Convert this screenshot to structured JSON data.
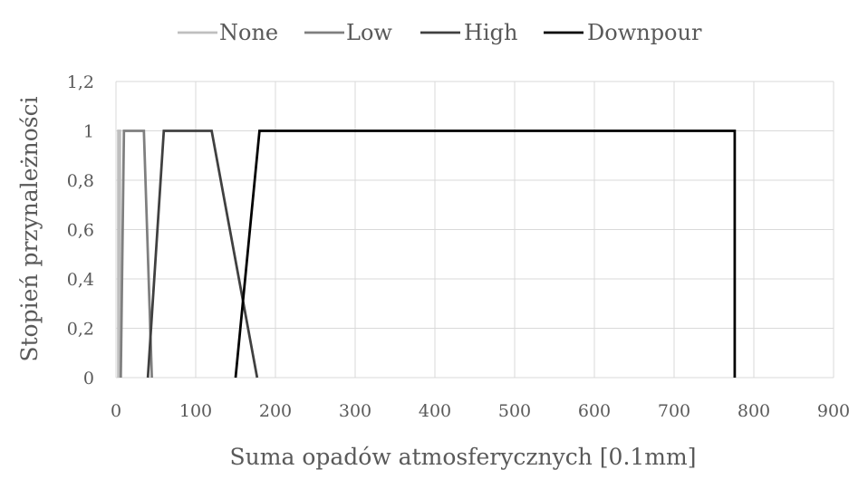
{
  "chart_data": {
    "type": "line",
    "title": "",
    "xlabel": "Suma opadów atmosferycznych [0.1mm]",
    "ylabel": "Stopień przynależności",
    "xlim": [
      0,
      900
    ],
    "ylim": [
      0,
      1.2
    ],
    "x_ticks": [
      "0",
      "100",
      "200",
      "300",
      "400",
      "500",
      "600",
      "700",
      "800",
      "900"
    ],
    "y_ticks": [
      "0",
      "0,2",
      "0,4",
      "0,6",
      "0,8",
      "1",
      "1,2"
    ],
    "grid": true,
    "legend_position": "top",
    "series": [
      {
        "name": "None",
        "color": "#bfbfbf",
        "points": [
          [
            3,
            0
          ],
          [
            3,
            1
          ],
          [
            5,
            1
          ],
          [
            5,
            0
          ]
        ]
      },
      {
        "name": "Low",
        "color": "#7f7f7f",
        "points": [
          [
            6,
            0
          ],
          [
            10,
            1
          ],
          [
            35,
            1
          ],
          [
            45,
            0
          ]
        ]
      },
      {
        "name": "High",
        "color": "#404040",
        "points": [
          [
            40,
            0
          ],
          [
            60,
            1
          ],
          [
            120,
            1
          ],
          [
            177,
            0
          ]
        ]
      },
      {
        "name": "Downpour",
        "color": "#000000",
        "points": [
          [
            150,
            0
          ],
          [
            180,
            1
          ],
          [
            776,
            1
          ],
          [
            776,
            0
          ]
        ]
      }
    ]
  }
}
